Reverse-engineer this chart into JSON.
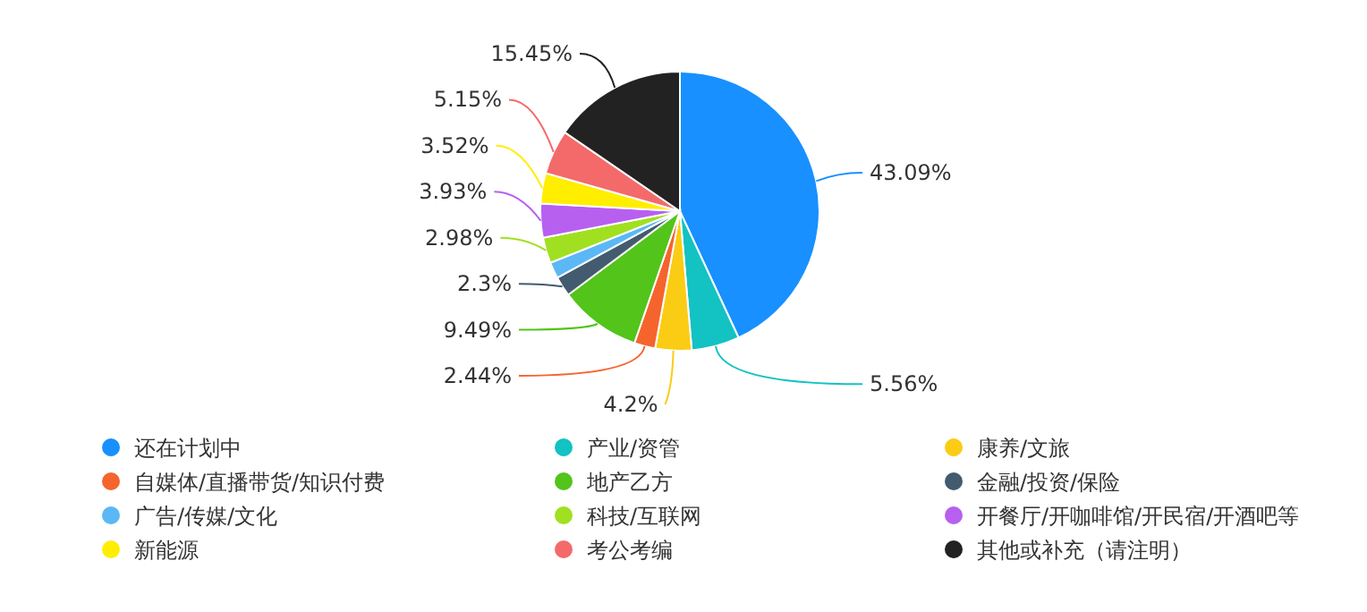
{
  "chart_data": {
    "type": "pie",
    "categories": [
      "还在计划中",
      "产业/资管",
      "康养/文旅",
      "自媒体/直播带货/知识付费",
      "地产乙方",
      "金融/投资/保险",
      "广告/传媒/文化",
      "科技/互联网",
      "开餐厅/开咖啡馆/开民宿/开酒吧等",
      "新能源",
      "考公考编",
      "其他或补充（请注明）"
    ],
    "values": [
      43.09,
      5.56,
      4.2,
      2.44,
      9.49,
      2.3,
      1.89,
      2.98,
      3.93,
      3.52,
      5.15,
      15.45
    ],
    "value_labels": [
      "43.09%",
      "5.56%",
      "4.2%",
      "2.44%",
      "9.49%",
      "2.3%",
      null,
      "2.98%",
      "3.93%",
      "3.52%",
      "5.15%",
      "15.45%"
    ],
    "colors": [
      "#1890ff",
      "#13c2c2",
      "#facc14",
      "#f5642d",
      "#52c41a",
      "#435b6e",
      "#5bb8f5",
      "#a0e020",
      "#b760f0",
      "#ffee00",
      "#f46a6a",
      "#222222"
    ],
    "legend": "bottom"
  }
}
